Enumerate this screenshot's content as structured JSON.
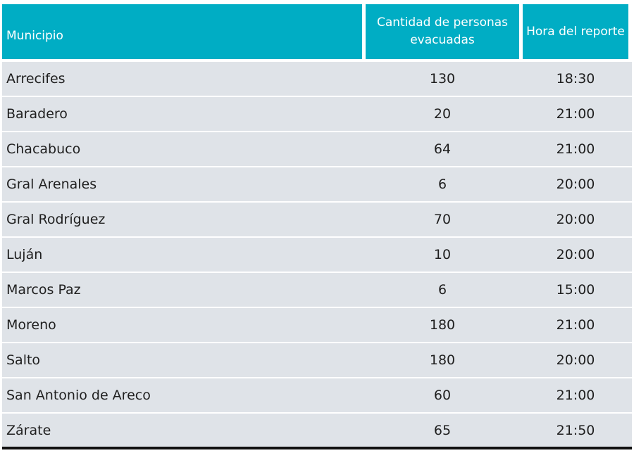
{
  "table": {
    "headers": {
      "municipio": "Municipio",
      "cantidad": "Cantidad de personas evacuadas",
      "hora": "Hora del reporte"
    },
    "rows": [
      {
        "municipio": "Arrecifes",
        "cantidad": "130",
        "hora": "18:30"
      },
      {
        "municipio": "Baradero",
        "cantidad": "20",
        "hora": "21:00"
      },
      {
        "municipio": "Chacabuco",
        "cantidad": "64",
        "hora": "21:00"
      },
      {
        "municipio": "Gral Arenales",
        "cantidad": "6",
        "hora": "20:00"
      },
      {
        "municipio": "Gral Rodríguez",
        "cantidad": "70",
        "hora": "20:00"
      },
      {
        "municipio": "Luján",
        "cantidad": "10",
        "hora": "20:00"
      },
      {
        "municipio": "Marcos Paz",
        "cantidad": "6",
        "hora": "15:00"
      },
      {
        "municipio": "Moreno",
        "cantidad": "180",
        "hora": "21:00"
      },
      {
        "municipio": "Salto",
        "cantidad": "180",
        "hora": "20:00"
      },
      {
        "municipio": "San Antonio de Areco",
        "cantidad": "60",
        "hora": "21:00"
      },
      {
        "municipio": "Zárate",
        "cantidad": "65",
        "hora": "21:50"
      }
    ]
  },
  "colors": {
    "header_bg": "#00adc4",
    "header_text": "#ffffff",
    "row_bg": "#dfe3e8",
    "text": "#1f1f1f"
  }
}
